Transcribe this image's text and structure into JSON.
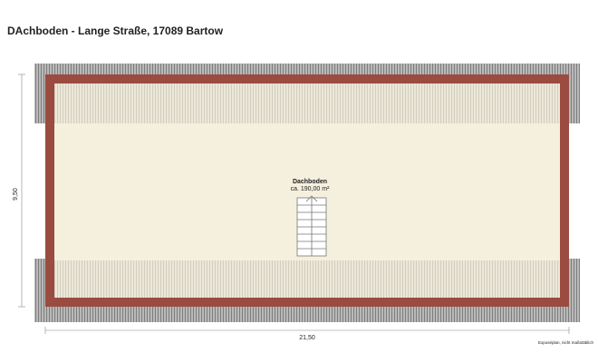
{
  "header": {
    "title": "DAchboden - Lange Straße, 17089 Bartow"
  },
  "room": {
    "name": "Dachboden",
    "area": "ca. 190,00 m²"
  },
  "dimensions": {
    "height": "9,50",
    "width": "21,50"
  },
  "footer": {
    "note": "Exposéplan, nicht maßstäblich"
  }
}
